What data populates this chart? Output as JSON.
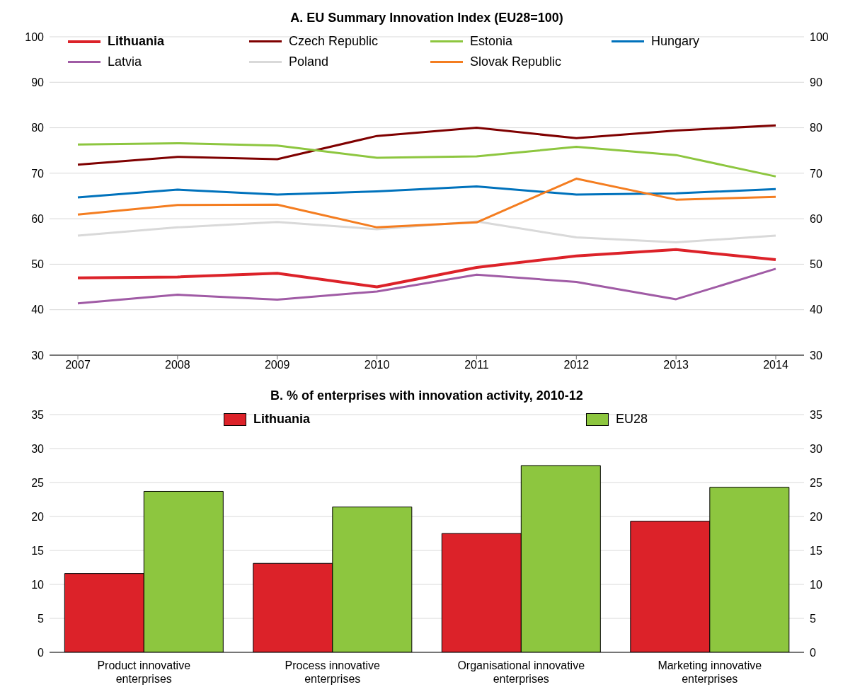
{
  "chart_data": [
    {
      "type": "line",
      "title": "A. EU Summary Innovation Index (EU28=100)",
      "categories": [
        "2007",
        "2008",
        "2009",
        "2010",
        "2011",
        "2012",
        "2013",
        "2014"
      ],
      "series": [
        {
          "name": "Lithuania",
          "color": "#dc2229",
          "values": [
            47,
            47.2,
            48,
            45,
            49.3,
            51.8,
            53.2,
            51
          ]
        },
        {
          "name": "Czech Republic",
          "color": "#7f0000",
          "values": [
            71.9,
            73.6,
            73.1,
            78.2,
            80,
            77.7,
            79.4,
            80.5
          ]
        },
        {
          "name": "Estonia",
          "color": "#8dc63f",
          "values": [
            76.3,
            76.6,
            76.1,
            73.4,
            73.7,
            75.8,
            74,
            69.3
          ]
        },
        {
          "name": "Hungary",
          "color": "#0072bc",
          "values": [
            64.7,
            66.4,
            65.3,
            66,
            67.1,
            65.3,
            65.6,
            66.5
          ]
        },
        {
          "name": "Latvia",
          "color": "#a05ba5",
          "values": [
            41.4,
            43.3,
            42.2,
            44,
            47.7,
            46.1,
            42.3,
            49
          ]
        },
        {
          "name": "Poland",
          "color": "#d9d9d9",
          "values": [
            56.3,
            58.1,
            59.3,
            57.7,
            59.4,
            55.9,
            54.8,
            56.3
          ]
        },
        {
          "name": "Slovak Republic",
          "color": "#f47d20",
          "values": [
            60.9,
            63,
            63.1,
            58.1,
            59.2,
            68.8,
            64.2,
            64.8
          ]
        }
      ],
      "ylim": [
        30,
        100
      ],
      "yticks": [
        30,
        40,
        50,
        60,
        70,
        80,
        90,
        100
      ],
      "y2lim": [
        30,
        100
      ],
      "y2ticks": [
        30,
        40,
        50,
        60,
        70,
        80,
        90,
        100
      ],
      "grid": "y",
      "legend": "top",
      "marker": "none",
      "line_style": "solid"
    },
    {
      "type": "bar",
      "title": "B. % of enterprises with innovation activity, 2010-12",
      "categories": [
        "Product innovative enterprises",
        "Process innovative enterprises",
        "Organisational innovative enterprises",
        "Marketing innovative enterprises"
      ],
      "series": [
        {
          "name": "Lithuania",
          "color": "#dc2229",
          "values": [
            11.6,
            13.1,
            17.5,
            19.3
          ]
        },
        {
          "name": "EU28",
          "color": "#8dc63f",
          "values": [
            23.7,
            21.4,
            27.5,
            24.3
          ]
        }
      ],
      "ylim": [
        0,
        35
      ],
      "yticks": [
        0,
        5,
        10,
        15,
        20,
        25,
        30,
        35
      ],
      "y2lim": [
        0,
        35
      ],
      "y2ticks": [
        0,
        5,
        10,
        15,
        20,
        25,
        30,
        35
      ],
      "grid": "y",
      "legend": "top"
    }
  ]
}
